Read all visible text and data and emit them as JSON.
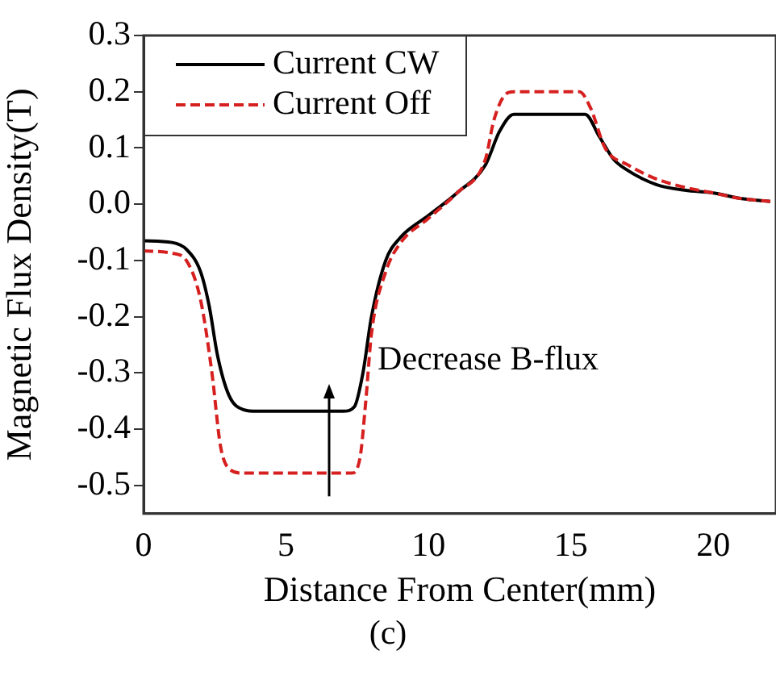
{
  "chart_data": {
    "type": "line",
    "xlabel": "Distance From Center(mm)",
    "ylabel": "Magnetic Flux Density(T)",
    "xlim": [
      0,
      22.2
    ],
    "xticks": [
      0,
      5,
      10,
      15,
      20
    ],
    "ylim": [
      -0.55,
      0.3
    ],
    "yticks": [
      {
        "value": -0.5,
        "label": "-0.5"
      },
      {
        "value": -0.4,
        "label": "-0.4"
      },
      {
        "value": -0.3,
        "label": "-0.3"
      },
      {
        "value": -0.2,
        "label": "-0.2"
      },
      {
        "value": -0.1,
        "label": "-0.1"
      },
      {
        "value": 0,
        "label": "0.0"
      },
      {
        "value": 0.1,
        "label": "0.1"
      },
      {
        "value": 0.2,
        "label": "0.2"
      },
      {
        "value": 0.3,
        "label": "0.3"
      }
    ],
    "legend": "top left",
    "marker": "none",
    "annotations": [
      "Decrease B-flux",
      "(c)"
    ],
    "series": [
      {
        "name": "Current CW",
        "color": "#000000",
        "line_style": "solid",
        "x": [
          0,
          1,
          1.5,
          2,
          2.3,
          2.6,
          3,
          3.5,
          4,
          7,
          7.4,
          7.7,
          8,
          8.5,
          9,
          10,
          11,
          12,
          12.5,
          13,
          15.5,
          16,
          16.5,
          17,
          18,
          19,
          20,
          21,
          22
        ],
        "values": [
          -0.065,
          -0.068,
          -0.08,
          -0.12,
          -0.18,
          -0.27,
          -0.34,
          -0.365,
          -0.368,
          -0.368,
          -0.36,
          -0.3,
          -0.2,
          -0.1,
          -0.06,
          -0.02,
          0.02,
          0.07,
          0.13,
          0.16,
          0.16,
          0.12,
          0.08,
          0.06,
          0.035,
          0.025,
          0.02,
          0.01,
          0.005
        ]
      },
      {
        "name": "Current Off",
        "color": "#d62020",
        "line_style": "dashed",
        "x": [
          0,
          1,
          1.5,
          2,
          2.4,
          2.7,
          3,
          3.5,
          7.3,
          7.6,
          7.8,
          8,
          8.5,
          9,
          10,
          11,
          12,
          12.3,
          12.7,
          13,
          15.3,
          15.7,
          16.2,
          17,
          18,
          19,
          20,
          21,
          22
        ],
        "values": [
          -0.083,
          -0.087,
          -0.1,
          -0.17,
          -0.3,
          -0.43,
          -0.47,
          -0.478,
          -0.478,
          -0.45,
          -0.35,
          -0.23,
          -0.12,
          -0.07,
          -0.025,
          0.02,
          0.08,
          0.15,
          0.195,
          0.2,
          0.2,
          0.17,
          0.1,
          0.07,
          0.045,
          0.03,
          0.02,
          0.01,
          0.005
        ]
      }
    ]
  }
}
